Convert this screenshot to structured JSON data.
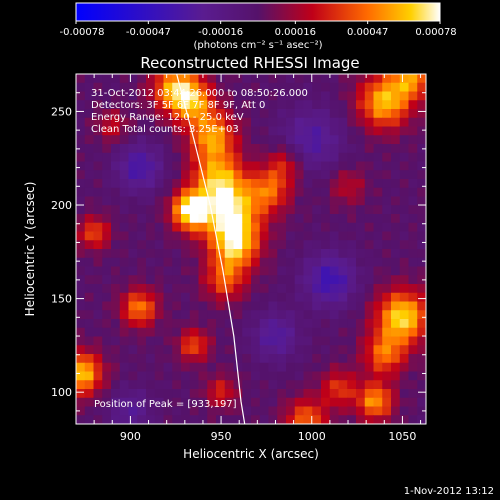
{
  "colorbar": {
    "ticks": [
      "-0.00078",
      "-0.00047",
      "-0.00016",
      "0.00016",
      "0.00047",
      "0.00078"
    ],
    "units_label": "(photons cm⁻² s⁻¹ asec⁻²)"
  },
  "chart_data": {
    "type": "heatmap",
    "title": "Reconstructed RHESSI Image",
    "xlabel": "Heliocentric X (arcsec)",
    "ylabel": "Heliocentric Y (arcsec)",
    "xlim": [
      870,
      1063
    ],
    "ylim": [
      83,
      270
    ],
    "xticks": [
      900,
      950,
      1000,
      1050
    ],
    "yticks": [
      100,
      150,
      200,
      250
    ],
    "color_range": [
      -0.00078,
      0.00078
    ],
    "colormap": "hot",
    "peak": {
      "x": 933,
      "y": 197
    },
    "info_lines": [
      "31-Oct-2012 03:44:26.000 to 08:50:26.000",
      "Detectors: 3F 5F 6F 7F 8F 9F, Att 0",
      "Energy Range: 12.0 - 25.0 keV",
      "Clean    Total counts: 3.25E+03"
    ],
    "peak_label": "Position of Peak = [933,197]",
    "blobs": [
      {
        "x": 933,
        "y": 197,
        "amp": 0.00078,
        "s": 7
      },
      {
        "x": 955,
        "y": 196,
        "amp": 0.00068,
        "s": 12
      },
      {
        "x": 948,
        "y": 215,
        "amp": 0.0005,
        "s": 10
      },
      {
        "x": 958,
        "y": 178,
        "amp": 0.00055,
        "s": 9
      },
      {
        "x": 952,
        "y": 160,
        "amp": 0.0004,
        "s": 8
      },
      {
        "x": 945,
        "y": 237,
        "amp": 0.00055,
        "s": 9
      },
      {
        "x": 925,
        "y": 262,
        "amp": 0.0006,
        "s": 9
      },
      {
        "x": 935,
        "y": 255,
        "amp": 0.00045,
        "s": 8
      },
      {
        "x": 977,
        "y": 208,
        "amp": 0.0004,
        "s": 8
      },
      {
        "x": 985,
        "y": 222,
        "amp": 0.0003,
        "s": 7
      },
      {
        "x": 1040,
        "y": 255,
        "amp": 0.00062,
        "s": 10
      },
      {
        "x": 1055,
        "y": 268,
        "amp": 0.0005,
        "s": 8
      },
      {
        "x": 1020,
        "y": 210,
        "amp": 0.00022,
        "s": 7
      },
      {
        "x": 1050,
        "y": 140,
        "amp": 0.0007,
        "s": 10
      },
      {
        "x": 1040,
        "y": 120,
        "amp": 0.00045,
        "s": 8
      },
      {
        "x": 1035,
        "y": 95,
        "amp": 0.00055,
        "s": 7
      },
      {
        "x": 997,
        "y": 85,
        "amp": 0.00045,
        "s": 8
      },
      {
        "x": 1015,
        "y": 102,
        "amp": 0.00035,
        "s": 7
      },
      {
        "x": 873,
        "y": 110,
        "amp": 0.00065,
        "s": 8
      },
      {
        "x": 880,
        "y": 185,
        "amp": 0.0004,
        "s": 6
      },
      {
        "x": 905,
        "y": 145,
        "amp": 0.0005,
        "s": 7
      },
      {
        "x": 935,
        "y": 125,
        "amp": 0.0004,
        "s": 6
      },
      {
        "x": 950,
        "y": 100,
        "amp": 0.0003,
        "s": 6
      },
      {
        "x": 890,
        "y": 242,
        "amp": 0.00025,
        "s": 6
      },
      {
        "x": 1010,
        "y": 160,
        "amp": -0.0004,
        "s": 10
      },
      {
        "x": 1000,
        "y": 235,
        "amp": -0.0003,
        "s": 12
      },
      {
        "x": 905,
        "y": 220,
        "amp": -0.00035,
        "s": 9
      },
      {
        "x": 980,
        "y": 130,
        "amp": -0.0003,
        "s": 9
      },
      {
        "x": 900,
        "y": 90,
        "amp": -0.00025,
        "s": 8
      }
    ],
    "limb": [
      [
        925,
        272
      ],
      [
        935,
        235
      ],
      [
        944,
        200
      ],
      [
        951,
        165
      ],
      [
        957,
        130
      ],
      [
        961,
        95
      ],
      [
        963,
        83
      ]
    ]
  },
  "footer": {
    "date": "1-Nov-2012 13:12"
  }
}
